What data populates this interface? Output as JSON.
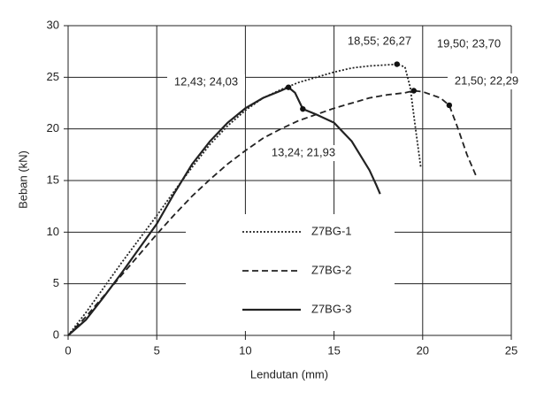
{
  "chart_data": {
    "type": "line",
    "x_label": "Lendutan (mm)",
    "y_label": "Beban (kN)",
    "xlim": [
      0,
      25
    ],
    "xticks": [
      0,
      5,
      10,
      15,
      20,
      25
    ],
    "ylim": [
      0,
      30
    ],
    "yticks": [
      0,
      5,
      10,
      15,
      20,
      25,
      30
    ],
    "grid": true,
    "legend": "center",
    "series": [
      {
        "name": "Z7BG-1",
        "color": "#222222",
        "style": "dotted",
        "x": [
          0,
          1,
          2,
          3,
          4,
          5,
          6,
          7,
          8,
          9,
          10,
          11,
          12,
          13,
          14,
          15,
          16,
          17,
          18,
          18.55,
          19,
          19.3,
          19.6,
          19.9
        ],
        "values": [
          0,
          2.2,
          4.6,
          7,
          9.3,
          11.6,
          14,
          16.3,
          18.5,
          20.3,
          21.8,
          23,
          23.8,
          24.5,
          25,
          25.5,
          25.9,
          26.1,
          26.2,
          26.27,
          26,
          24,
          20,
          16.2
        ]
      },
      {
        "name": "Z7BG-2",
        "color": "#222222",
        "style": "dashed",
        "x": [
          0,
          1,
          2,
          3,
          4,
          5,
          6,
          7,
          8,
          9,
          10,
          11,
          12,
          13,
          14,
          15,
          16,
          17,
          18,
          19,
          19.5,
          20,
          21,
          21.5,
          22,
          22.5,
          23
        ],
        "values": [
          0,
          1.8,
          3.8,
          5.8,
          7.8,
          9.8,
          11.7,
          13.5,
          15.1,
          16.6,
          17.9,
          19.1,
          20,
          20.8,
          21.4,
          22,
          22.5,
          23,
          23.3,
          23.5,
          23.7,
          23.6,
          23,
          22.29,
          20,
          17.5,
          15.5
        ]
      },
      {
        "name": "Z7BG-3",
        "color": "#222222",
        "style": "solid",
        "x": [
          0,
          1,
          2,
          3,
          4,
          5,
          6,
          7,
          8,
          9,
          10,
          11,
          12,
          12.43,
          12.8,
          13.24,
          14,
          15,
          16,
          17,
          17.4,
          17.6
        ],
        "values": [
          0,
          1.5,
          3.7,
          6,
          8.4,
          10.8,
          13.8,
          16.6,
          18.8,
          20.6,
          22,
          23,
          23.7,
          24.03,
          23.5,
          21.93,
          21.4,
          20.6,
          18.8,
          16,
          14.5,
          13.7
        ]
      }
    ],
    "annotations": [
      {
        "text": "12,43; 24,03",
        "x": 12.43,
        "y": 24.03
      },
      {
        "text": "18,55; 26,27",
        "x": 18.55,
        "y": 26.27
      },
      {
        "text": "19,50; 23,70",
        "x": 19.5,
        "y": 23.7
      },
      {
        "text": "21,50; 22,29",
        "x": 21.5,
        "y": 22.29
      },
      {
        "text": "13,24; 21,93",
        "x": 13.24,
        "y": 21.93
      }
    ]
  }
}
